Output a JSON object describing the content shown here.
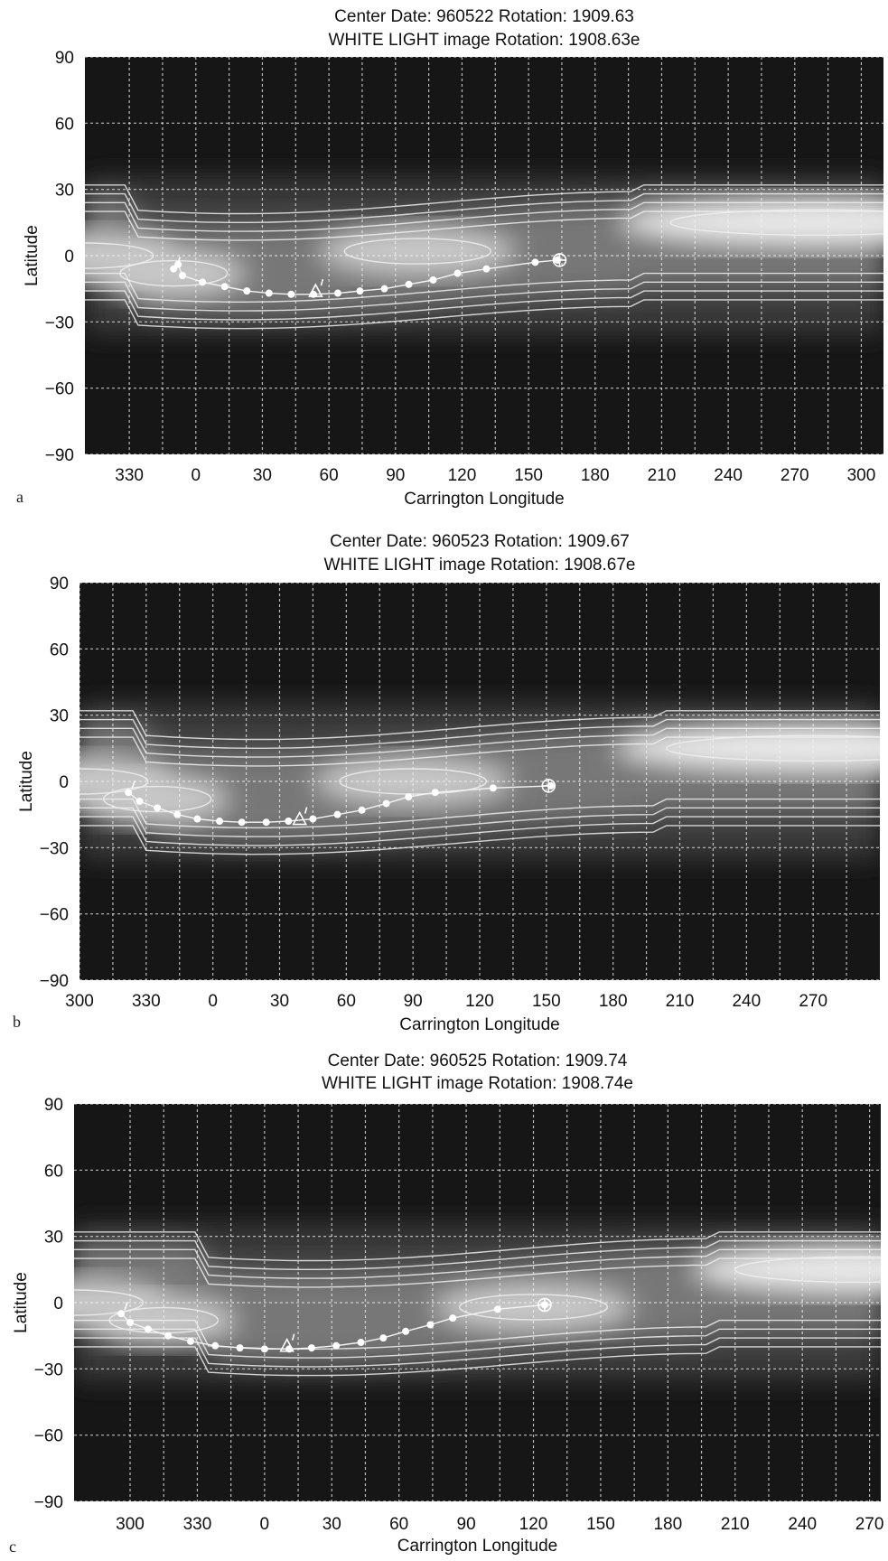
{
  "chart_data": [
    {
      "type": "heatmap",
      "panel_label": "a",
      "title_line1": "Center Date: 960522 Rotation: 1909.63",
      "title_line2": "WHITE LIGHT image Rotation: 1908.63e",
      "xlabel": "Carrington Longitude",
      "ylabel": "Latitude",
      "yticks": [
        90,
        60,
        30,
        0,
        -30,
        -60,
        -90
      ],
      "ylim": [
        -90,
        90
      ],
      "x_start": 310,
      "x_span": 360,
      "xticks": [
        330,
        0,
        30,
        60,
        90,
        120,
        150,
        180,
        210,
        240,
        270,
        300
      ],
      "grid": true,
      "bright_band": [
        {
          "x": 310,
          "y": 0,
          "w": 28
        },
        {
          "x": 350,
          "y": -8,
          "w": 22
        },
        {
          "x": 100,
          "y": 2,
          "w": 30
        },
        {
          "x": 280,
          "y": 15,
          "w": 60
        }
      ],
      "track": [
        [
          -10,
          -6
        ],
        [
          -8,
          -4
        ],
        [
          -6,
          -9
        ],
        [
          3,
          -12
        ],
        [
          13,
          -14
        ],
        [
          23,
          -16
        ],
        [
          33,
          -17
        ],
        [
          43,
          -17.5
        ],
        [
          53,
          -17.5
        ],
        [
          64,
          -17
        ],
        [
          74,
          -16
        ],
        [
          85,
          -15
        ],
        [
          96,
          -13
        ],
        [
          107,
          -11
        ],
        [
          118,
          -8
        ],
        [
          131,
          -6
        ],
        [
          153,
          -3
        ],
        [
          163,
          -2
        ]
      ],
      "triangle": [
        54,
        -16
      ],
      "circle": [
        164,
        -2
      ]
    },
    {
      "type": "heatmap",
      "panel_label": "b",
      "title_line1": "Center Date: 960523 Rotation: 1909.67",
      "title_line2": "WHITE LIGHT image Rotation: 1908.67e",
      "xlabel": "Carrington Longitude",
      "ylabel": "Latitude",
      "yticks": [
        90,
        60,
        30,
        0,
        -30,
        -60,
        -90
      ],
      "ylim": [
        -90,
        90
      ],
      "x_start": 300,
      "x_span": 360,
      "xticks": [
        300,
        330,
        0,
        30,
        60,
        90,
        120,
        150,
        180,
        210,
        240,
        270
      ],
      "grid": true,
      "bright_band": [
        {
          "x": 300,
          "y": 0,
          "w": 28
        },
        {
          "x": 335,
          "y": -8,
          "w": 22
        },
        {
          "x": 90,
          "y": 0,
          "w": 30
        },
        {
          "x": 270,
          "y": 15,
          "w": 60
        }
      ],
      "track": [
        [
          -38,
          -5
        ],
        [
          -33,
          -9
        ],
        [
          -25,
          -12
        ],
        [
          -16,
          -15
        ],
        [
          -7,
          -17
        ],
        [
          3,
          -18
        ],
        [
          13,
          -18.5
        ],
        [
          24,
          -18.5
        ],
        [
          34,
          -18
        ],
        [
          45,
          -17
        ],
        [
          56,
          -15
        ],
        [
          67,
          -13
        ],
        [
          78,
          -10
        ],
        [
          88,
          -7
        ],
        [
          100,
          -5
        ],
        [
          126,
          -3
        ],
        [
          152,
          -2
        ]
      ],
      "triangle": [
        39,
        -17
      ],
      "circle": [
        151,
        -2
      ]
    },
    {
      "type": "heatmap",
      "panel_label": "c",
      "title_line1": "Center Date: 960525 Rotation: 1909.74",
      "title_line2": "WHITE LIGHT image Rotation: 1908.74e",
      "xlabel": "Carrington Longitude",
      "ylabel": "Latitude",
      "yticks": [
        90,
        60,
        30,
        0,
        -30,
        -60,
        -90
      ],
      "ylim": [
        -90,
        90
      ],
      "x_start": 275,
      "x_span": 360,
      "xticks": [
        300,
        330,
        0,
        30,
        60,
        90,
        120,
        150,
        180,
        210,
        240,
        270
      ],
      "grid": true,
      "bright_band": [
        {
          "x": 275,
          "y": 0,
          "w": 28
        },
        {
          "x": 315,
          "y": -8,
          "w": 22
        },
        {
          "x": 120,
          "y": -2,
          "w": 30
        },
        {
          "x": 265,
          "y": 15,
          "w": 50
        }
      ],
      "track": [
        [
          -64,
          -5
        ],
        [
          -60,
          -9
        ],
        [
          -52,
          -12
        ],
        [
          -43,
          -15
        ],
        [
          -33,
          -17.5
        ],
        [
          -22,
          -19.5
        ],
        [
          -11,
          -20.5
        ],
        [
          0,
          -21
        ],
        [
          11,
          -21
        ],
        [
          21,
          -20.5
        ],
        [
          32,
          -19.5
        ],
        [
          43,
          -18
        ],
        [
          53,
          -16
        ],
        [
          63,
          -13
        ],
        [
          74,
          -10
        ],
        [
          84,
          -7
        ],
        [
          104,
          -3
        ],
        [
          125,
          -1
        ]
      ],
      "triangle": [
        10,
        -19.5
      ],
      "circle": [
        125,
        -1
      ]
    }
  ]
}
